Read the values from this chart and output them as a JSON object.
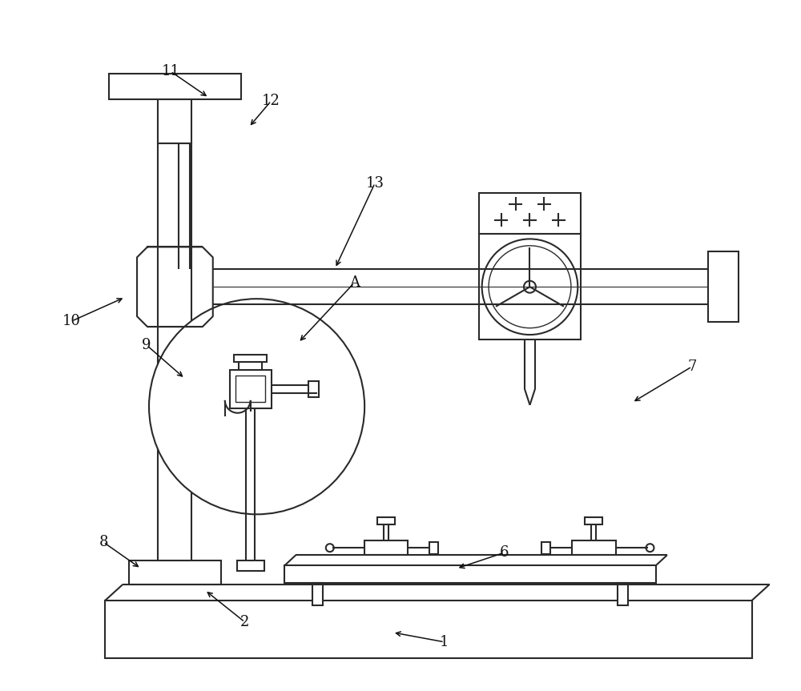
{
  "bg_color": "#ffffff",
  "line_color": "#2a2a2a",
  "lw": 1.5,
  "figsize": [
    10.0,
    8.63
  ],
  "ann_fs": 13,
  "ann_color": "#111111"
}
